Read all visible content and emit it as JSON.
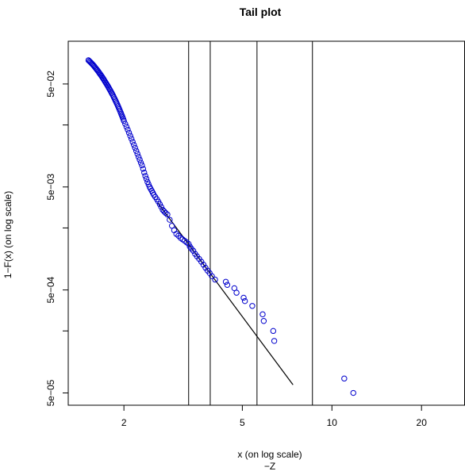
{
  "chart_data": {
    "type": "scatter",
    "title": "Tail plot",
    "xlabel": "x (on log scale)",
    "sublabel": "−Z",
    "ylabel": "1−F(x) (on log scale)",
    "x_scale": "log",
    "y_scale": "log",
    "xlim": [
      1.3,
      28
    ],
    "ylim": [
      3.8e-05,
      0.13
    ],
    "x_ticks": [
      {
        "value": 2,
        "label": "2"
      },
      {
        "value": 5,
        "label": "5"
      },
      {
        "value": 10,
        "label": "10"
      },
      {
        "value": 20,
        "label": "20"
      }
    ],
    "y_ticks": [
      {
        "value": 0.05,
        "label": "5e−02"
      },
      {
        "value": 0.02,
        "label": ""
      },
      {
        "value": 0.005,
        "label": "5e−03"
      },
      {
        "value": 0.002,
        "label": ""
      },
      {
        "value": 0.0005,
        "label": "5e−04"
      },
      {
        "value": 0.0002,
        "label": ""
      },
      {
        "value": 5e-05,
        "label": "5e−05"
      }
    ],
    "grid": false,
    "legend": "none",
    "point_color": "#0000cc",
    "vertical_lines_x": [
      3.3,
      3.9,
      5.6,
      8.6
    ],
    "fitted_line": [
      [
        2.6,
        0.0035
      ],
      [
        7.4,
        6e-05
      ]
    ],
    "series": [
      {
        "points": [
          [
            1.52,
            0.085
          ],
          [
            1.53,
            0.0835
          ],
          [
            1.54,
            0.082
          ],
          [
            1.55,
            0.0805
          ],
          [
            1.56,
            0.079
          ],
          [
            1.57,
            0.0774
          ],
          [
            1.58,
            0.0758
          ],
          [
            1.59,
            0.0742
          ],
          [
            1.6,
            0.0725
          ],
          [
            1.61,
            0.0709
          ],
          [
            1.62,
            0.0693
          ],
          [
            1.63,
            0.0678
          ],
          [
            1.64,
            0.0662
          ],
          [
            1.65,
            0.0646
          ],
          [
            1.66,
            0.063
          ],
          [
            1.67,
            0.0615
          ],
          [
            1.68,
            0.06
          ],
          [
            1.69,
            0.0585
          ],
          [
            1.7,
            0.057
          ],
          [
            1.71,
            0.0555
          ],
          [
            1.72,
            0.054
          ],
          [
            1.73,
            0.0525
          ],
          [
            1.74,
            0.0511
          ],
          [
            1.75,
            0.0498
          ],
          [
            1.76,
            0.0485
          ],
          [
            1.77,
            0.0472
          ],
          [
            1.78,
            0.0458
          ],
          [
            1.79,
            0.0445
          ],
          [
            1.8,
            0.0433
          ],
          [
            1.81,
            0.042
          ],
          [
            1.82,
            0.0408
          ],
          [
            1.83,
            0.0396
          ],
          [
            1.84,
            0.0384
          ],
          [
            1.85,
            0.0372
          ],
          [
            1.86,
            0.036
          ],
          [
            1.87,
            0.0349
          ],
          [
            1.88,
            0.0338
          ],
          [
            1.89,
            0.0327
          ],
          [
            1.9,
            0.0316
          ],
          [
            1.91,
            0.0305
          ],
          [
            1.92,
            0.0295
          ],
          [
            1.93,
            0.0285
          ],
          [
            1.94,
            0.0275
          ],
          [
            1.95,
            0.0265
          ],
          [
            1.96,
            0.0255
          ],
          [
            1.97,
            0.0246
          ],
          [
            1.98,
            0.0237
          ],
          [
            1.99,
            0.0228
          ],
          [
            2.0,
            0.0219
          ],
          [
            2.02,
            0.0205
          ],
          [
            2.04,
            0.0192
          ],
          [
            2.06,
            0.018
          ],
          [
            2.08,
            0.0168
          ],
          [
            2.1,
            0.0157
          ],
          [
            2.12,
            0.0147
          ],
          [
            2.14,
            0.0137
          ],
          [
            2.16,
            0.0128
          ],
          [
            2.18,
            0.012
          ],
          [
            2.2,
            0.0112
          ],
          [
            2.22,
            0.0105
          ],
          [
            2.24,
            0.0098
          ],
          [
            2.26,
            0.0092
          ],
          [
            2.28,
            0.0086
          ],
          [
            2.3,
            0.0081
          ],
          [
            2.32,
            0.0075
          ],
          [
            2.34,
            0.0069
          ],
          [
            2.36,
            0.0064
          ],
          [
            2.38,
            0.006
          ],
          [
            2.4,
            0.0056
          ],
          [
            2.42,
            0.0053
          ],
          [
            2.44,
            0.005
          ],
          [
            2.46,
            0.0048
          ],
          [
            2.48,
            0.0046
          ],
          [
            2.5,
            0.0044
          ],
          [
            2.52,
            0.0042
          ],
          [
            2.55,
            0.004
          ],
          [
            2.58,
            0.0038
          ],
          [
            2.61,
            0.0036
          ],
          [
            2.64,
            0.0034
          ],
          [
            2.67,
            0.0032
          ],
          [
            2.7,
            0.003
          ],
          [
            2.73,
            0.0029
          ],
          [
            2.76,
            0.0028
          ],
          [
            2.8,
            0.0027
          ],
          [
            2.85,
            0.0024
          ],
          [
            2.9,
            0.0021
          ],
          [
            2.95,
            0.0019
          ],
          [
            3.0,
            0.00175
          ],
          [
            3.05,
            0.00168
          ],
          [
            3.1,
            0.0016
          ],
          [
            3.15,
            0.00155
          ],
          [
            3.2,
            0.0015
          ],
          [
            3.25,
            0.00145
          ],
          [
            3.3,
            0.0014
          ],
          [
            3.33,
            0.00132
          ],
          [
            3.37,
            0.00126
          ],
          [
            3.42,
            0.0012
          ],
          [
            3.47,
            0.00112
          ],
          [
            3.52,
            0.00106
          ],
          [
            3.58,
            0.001
          ],
          [
            3.64,
            0.00094
          ],
          [
            3.7,
            0.00088
          ],
          [
            3.76,
            0.00082
          ],
          [
            3.82,
            0.00077
          ],
          [
            3.88,
            0.00073
          ],
          [
            3.95,
            0.00068
          ],
          [
            4.05,
            0.00063
          ],
          [
            4.4,
            0.0006
          ],
          [
            4.45,
            0.00056
          ],
          [
            4.7,
            0.00052
          ],
          [
            4.78,
            0.00047
          ],
          [
            5.05,
            0.00042
          ],
          [
            5.1,
            0.00039
          ],
          [
            5.4,
            0.00035
          ],
          [
            5.85,
            0.00029
          ],
          [
            5.9,
            0.00025
          ],
          [
            6.35,
            0.0002
          ],
          [
            6.4,
            0.00016
          ],
          [
            11.0,
            6.9e-05
          ],
          [
            11.8,
            5e-05
          ]
        ]
      }
    ]
  }
}
